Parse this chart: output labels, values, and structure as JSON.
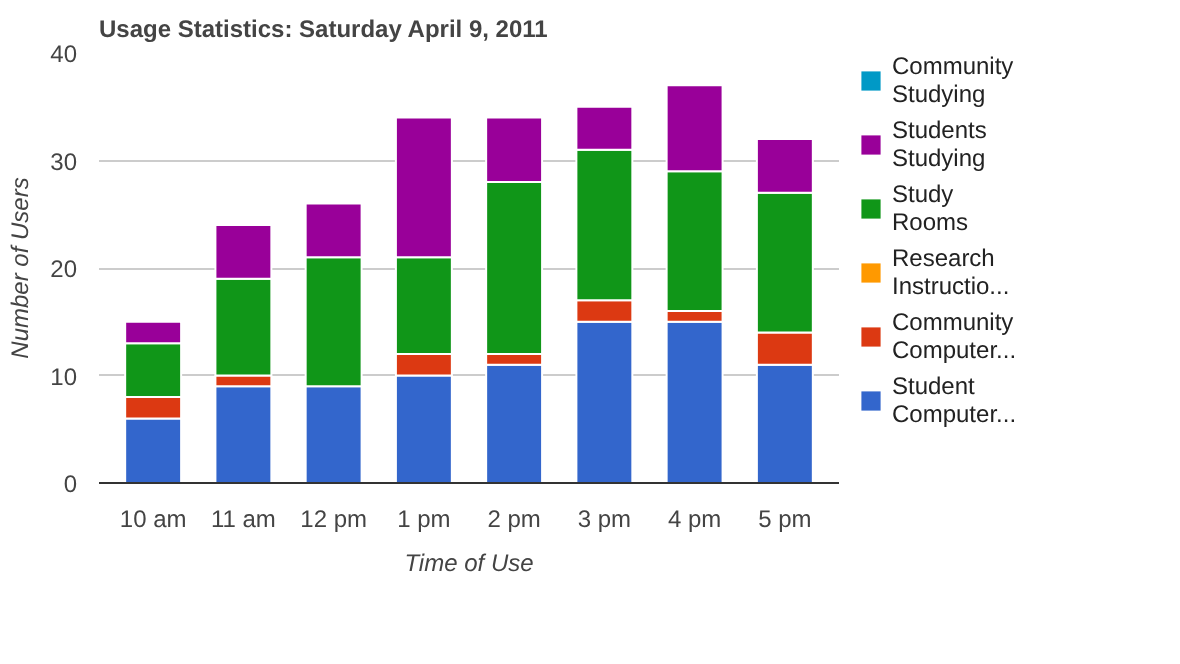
{
  "chart_data": {
    "type": "bar",
    "title": "Usage Statistics: Saturday April 9, 2011",
    "xlabel": "Time of Use",
    "ylabel": "Number of Users",
    "categories": [
      "10 am",
      "11 am",
      "12 pm",
      "1 pm",
      "2 pm",
      "3 pm",
      "4 pm",
      "5 pm"
    ],
    "stacked": true,
    "series": [
      {
        "name": "Student Computer...",
        "color": "#3366cc",
        "values": [
          6,
          9,
          9,
          10,
          11,
          15,
          15,
          11
        ]
      },
      {
        "name": "Community Computer...",
        "color": "#dc3912",
        "values": [
          2,
          1,
          0,
          2,
          1,
          2,
          1,
          3
        ]
      },
      {
        "name": "Research Instructio...",
        "color": "#ff9900",
        "values": [
          0,
          0,
          0,
          0,
          0,
          0,
          0,
          0
        ]
      },
      {
        "name": "Study Rooms",
        "color": "#109618",
        "values": [
          5,
          9,
          12,
          9,
          16,
          14,
          13,
          13
        ]
      },
      {
        "name": "Students Studying",
        "color": "#990099",
        "values": [
          2,
          5,
          5,
          13,
          6,
          4,
          8,
          5
        ]
      },
      {
        "name": "Community Studying",
        "color": "#0099c6",
        "values": [
          0,
          0,
          0,
          0,
          0,
          0,
          0,
          0
        ]
      }
    ],
    "ylim": [
      0,
      40
    ],
    "yticks": [
      0,
      10,
      20,
      30,
      40
    ],
    "grid": "y",
    "legend": "right"
  }
}
